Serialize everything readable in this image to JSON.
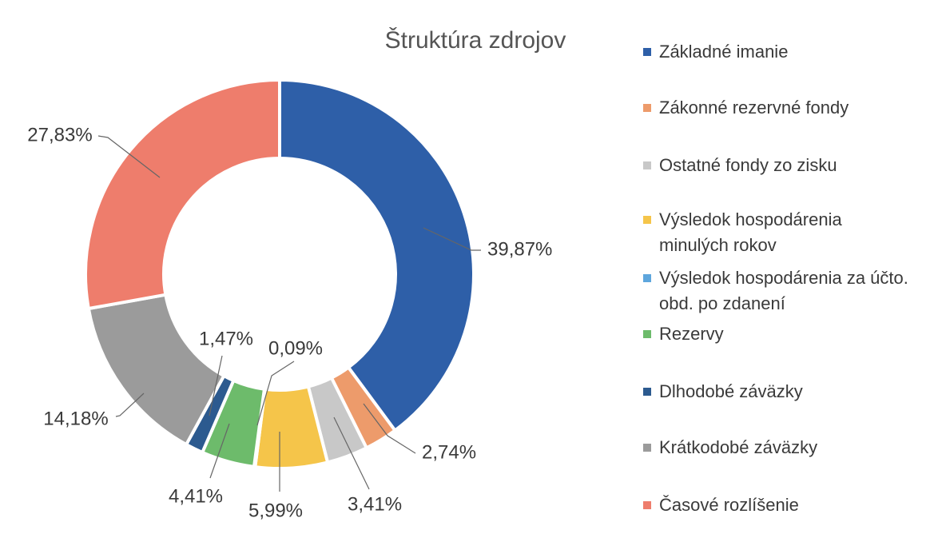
{
  "chart_data": {
    "type": "donut",
    "title": "Štruktúra zdrojov",
    "categories": [
      "Základné imanie",
      "Zákonné rezervné fondy",
      "Ostatné fondy zo zisku",
      "Výsledok hospodárenia minulých rokov",
      "Výsledok hospodárenia za účto. obd. po zdanení",
      "Rezervy",
      "Dlhodobé záväzky",
      "Krátkodobé záväzky",
      "Časové rozlíšenie"
    ],
    "values": [
      39.87,
      2.74,
      3.41,
      5.99,
      0.09,
      4.41,
      1.47,
      14.18,
      27.83
    ],
    "value_labels": [
      "39,87%",
      "2,74%",
      "3,41%",
      "5,99%",
      "0,09%",
      "4,41%",
      "1,47%",
      "14,18%",
      "27,83%"
    ],
    "colors": [
      "#2e5fa8",
      "#ed9b6b",
      "#c8c8c8",
      "#f5c54a",
      "#5ea6dd",
      "#6dbb6b",
      "#2c5a8f",
      "#9b9b9b",
      "#ee7d6c"
    ],
    "legend": "right"
  }
}
